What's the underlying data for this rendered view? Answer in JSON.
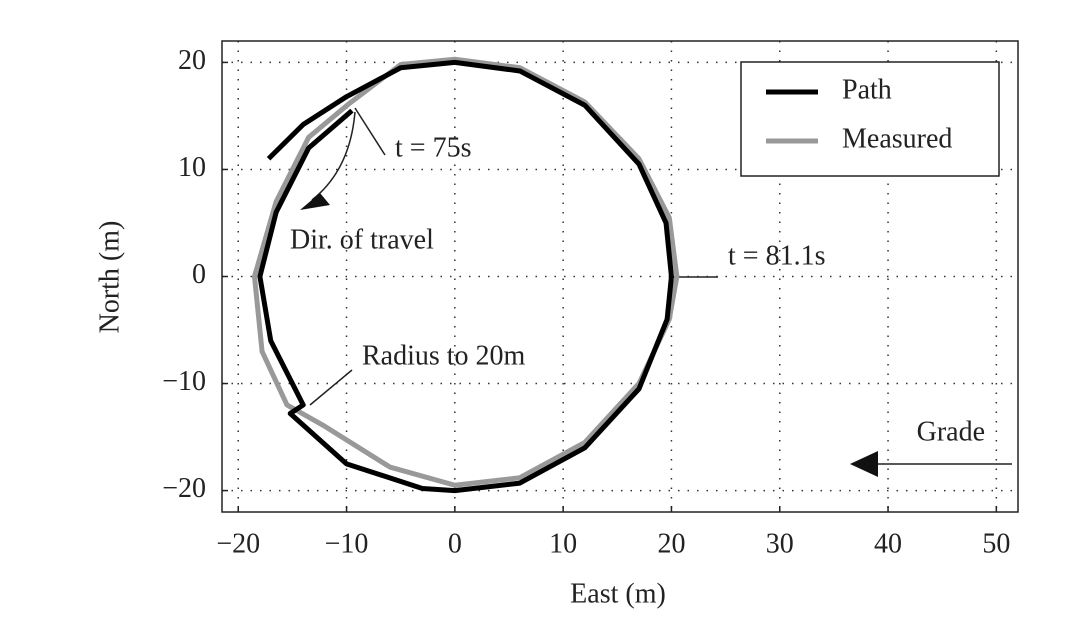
{
  "chart_data": {
    "type": "line",
    "xlabel": "East (m)",
    "ylabel": "North (m)",
    "xlim": [
      -21.5,
      52
    ],
    "ylim": [
      -22,
      22
    ],
    "xticks": [
      {
        "value": -20,
        "label": "−20"
      },
      {
        "value": -10,
        "label": "−10"
      },
      0,
      10,
      20,
      30,
      40,
      50
    ],
    "yticks": [
      {
        "value": -20,
        "label": "−20"
      },
      {
        "value": -10,
        "label": "−10"
      },
      0,
      10,
      20
    ],
    "grid": true,
    "legend": "upper right",
    "annotations": [
      "t = 75s",
      "Dir. of travel",
      "t = 81.1s",
      "Radius to 20m",
      "Grade"
    ],
    "series": [
      {
        "name": "Path",
        "color": "#000000",
        "x": [
          -9.5,
          -13.5,
          -16.5,
          -18,
          -17,
          -14,
          -15.2,
          -10,
          -3,
          0,
          6,
          12,
          17,
          19.6,
          20,
          19.5,
          17,
          12,
          6,
          0,
          -5,
          -10,
          -14,
          -17.2
        ],
        "y": [
          15.5,
          12,
          6,
          0,
          -6,
          -12,
          -12.8,
          -17.5,
          -19.8,
          -20,
          -19.3,
          -16,
          -10.5,
          -4,
          0,
          5,
          10.5,
          16,
          19.2,
          20,
          19.5,
          16.8,
          14.2,
          11
        ]
      },
      {
        "name": "Measured",
        "color": "#999999",
        "x": [
          -9.7,
          -13.5,
          -16.5,
          -18.5,
          -17.8,
          -15.5,
          -12,
          -6,
          0,
          6,
          12,
          17,
          19.8,
          20.5,
          19.8,
          17,
          12,
          6,
          0,
          -5,
          -9.7
        ],
        "y": [
          16.2,
          13,
          7,
          0,
          -7,
          -12,
          -14,
          -17.8,
          -19.5,
          -18.8,
          -15.5,
          -10,
          -4,
          0,
          5.5,
          11,
          16.3,
          19.5,
          20.3,
          19.8,
          16.2
        ]
      }
    ]
  }
}
